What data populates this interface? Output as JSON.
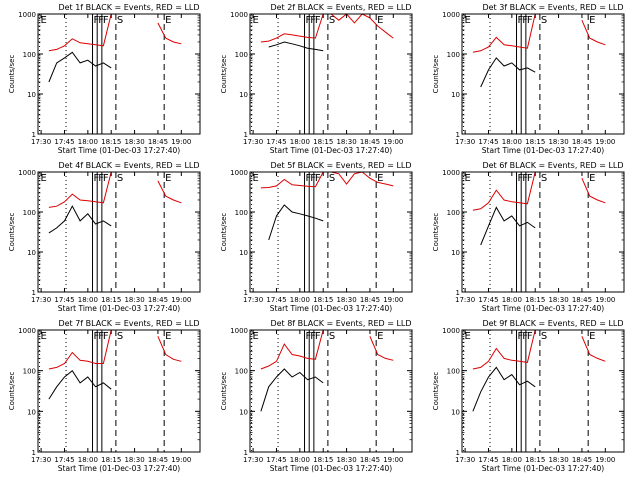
{
  "colors": {
    "events": "#000000",
    "lld": "#dd0000",
    "axes": "#000000"
  },
  "axis_common": {
    "ylabel": "Counts/sec",
    "xlabel": "Start Time (01-Dec-03 17:27:40)",
    "xticks": [
      "17:30",
      "17:45",
      "18:00",
      "18:15",
      "18:30",
      "18:45",
      "19:00"
    ],
    "yticks": [
      "1",
      "10",
      "100",
      "1000"
    ],
    "yscale": "log",
    "ylim": [
      1,
      1000
    ]
  },
  "chart_data": [
    {
      "type": "line",
      "title": "Det 1f BLACK = Events, RED = LLD",
      "markers": [
        "E",
        "F",
        "F",
        "F",
        "S",
        "E"
      ],
      "x": [
        "17:35",
        "17:40",
        "17:45",
        "17:50",
        "17:55",
        "18:00",
        "18:05",
        "18:10",
        "18:15",
        "18:20",
        "18:25",
        "18:30",
        "18:35",
        "18:40",
        "18:45",
        "18:50",
        "18:55",
        "19:00"
      ],
      "series": [
        {
          "name": "Events",
          "values": [
            20,
            60,
            80,
            110,
            60,
            70,
            50,
            60,
            45,
            null,
            null,
            null,
            null,
            null,
            20,
            null,
            null,
            null
          ]
        },
        {
          "name": "LLD",
          "values": [
            120,
            130,
            160,
            240,
            190,
            180,
            170,
            160,
            1000,
            null,
            null,
            null,
            null,
            null,
            600,
            250,
            200,
            180
          ]
        }
      ]
    },
    {
      "type": "line",
      "title": "Det 2f BLACK = Events, RED = LLD",
      "markers": [
        "E",
        "F",
        "F",
        "F",
        "S",
        "E"
      ],
      "x": [
        "17:35",
        "17:40",
        "17:45",
        "17:50",
        "17:55",
        "18:00",
        "18:05",
        "18:10",
        "18:15",
        "18:20",
        "18:25",
        "18:30",
        "18:35",
        "18:40",
        "18:45",
        "18:50",
        "18:55",
        "19:00"
      ],
      "series": [
        {
          "name": "Events",
          "values": [
            null,
            150,
            170,
            200,
            180,
            160,
            140,
            130,
            120,
            null,
            null,
            null,
            null,
            null,
            150,
            null,
            null,
            null
          ]
        },
        {
          "name": "LLD",
          "values": [
            200,
            210,
            250,
            320,
            300,
            280,
            260,
            250,
            1000,
            1000,
            700,
            1000,
            600,
            1000,
            800,
            500,
            350,
            250
          ]
        }
      ]
    },
    {
      "type": "line",
      "title": "Det 3f BLACK = Events, RED = LLD",
      "markers": [
        "E",
        "F",
        "F",
        "F",
        "S",
        "E"
      ],
      "x": [
        "17:35",
        "17:40",
        "17:45",
        "17:50",
        "17:55",
        "18:00",
        "18:05",
        "18:10",
        "18:15",
        "18:20",
        "18:25",
        "18:30",
        "18:35",
        "18:40",
        "18:45",
        "18:50",
        "18:55",
        "19:00"
      ],
      "series": [
        {
          "name": "Events",
          "values": [
            null,
            15,
            40,
            80,
            50,
            60,
            40,
            45,
            35,
            null,
            null,
            null,
            null,
            null,
            15,
            null,
            null,
            null
          ]
        },
        {
          "name": "LLD",
          "values": [
            110,
            120,
            150,
            260,
            170,
            160,
            150,
            140,
            1000,
            null,
            null,
            null,
            null,
            null,
            700,
            250,
            200,
            170
          ]
        }
      ]
    },
    {
      "type": "line",
      "title": "Det 4f BLACK = Events, RED = LLD",
      "markers": [
        "E",
        "F",
        "F",
        "F",
        "S",
        "E"
      ],
      "x": [
        "17:35",
        "17:40",
        "17:45",
        "17:50",
        "17:55",
        "18:00",
        "18:05",
        "18:10",
        "18:15",
        "18:20",
        "18:25",
        "18:30",
        "18:35",
        "18:40",
        "18:45",
        "18:50",
        "18:55",
        "19:00"
      ],
      "series": [
        {
          "name": "Events",
          "values": [
            30,
            40,
            60,
            140,
            60,
            90,
            50,
            60,
            45,
            null,
            null,
            null,
            null,
            null,
            20,
            null,
            null,
            null
          ]
        },
        {
          "name": "LLD",
          "values": [
            130,
            140,
            180,
            280,
            200,
            190,
            180,
            170,
            1000,
            null,
            null,
            null,
            null,
            null,
            600,
            250,
            200,
            170
          ]
        }
      ]
    },
    {
      "type": "line",
      "title": "Det 5f BLACK = Events, RED = LLD",
      "markers": [
        "E",
        "F",
        "F",
        "F",
        "S",
        "E"
      ],
      "x": [
        "17:35",
        "17:40",
        "17:45",
        "17:50",
        "17:55",
        "18:00",
        "18:05",
        "18:10",
        "18:15",
        "18:20",
        "18:25",
        "18:30",
        "18:35",
        "18:40",
        "18:45",
        "18:50",
        "18:55",
        "19:00"
      ],
      "series": [
        {
          "name": "Events",
          "values": [
            null,
            20,
            80,
            150,
            100,
            90,
            80,
            70,
            60,
            null,
            null,
            null,
            null,
            null,
            60,
            null,
            null,
            null
          ]
        },
        {
          "name": "LLD",
          "values": [
            400,
            410,
            450,
            650,
            480,
            460,
            440,
            430,
            1000,
            1000,
            900,
            500,
            900,
            1000,
            700,
            550,
            500,
            450
          ]
        }
      ]
    },
    {
      "type": "line",
      "title": "Det 6f BLACK = Events, RED = LLD",
      "markers": [
        "E",
        "F",
        "F",
        "F",
        "S",
        "E"
      ],
      "x": [
        "17:35",
        "17:40",
        "17:45",
        "17:50",
        "17:55",
        "18:00",
        "18:05",
        "18:10",
        "18:15",
        "18:20",
        "18:25",
        "18:30",
        "18:35",
        "18:40",
        "18:45",
        "18:50",
        "18:55",
        "19:00"
      ],
      "series": [
        {
          "name": "Events",
          "values": [
            null,
            15,
            45,
            130,
            60,
            80,
            45,
            55,
            40,
            null,
            null,
            null,
            null,
            null,
            15,
            null,
            null,
            null
          ]
        },
        {
          "name": "LLD",
          "values": [
            110,
            120,
            170,
            350,
            200,
            180,
            170,
            160,
            1000,
            null,
            null,
            null,
            null,
            null,
            700,
            250,
            200,
            170
          ]
        }
      ]
    },
    {
      "type": "line",
      "title": "Det 7f BLACK = Events, RED = LLD",
      "markers": [
        "E",
        "F",
        "F",
        "F",
        "S",
        "E"
      ],
      "x": [
        "17:35",
        "17:40",
        "17:45",
        "17:50",
        "17:55",
        "18:00",
        "18:05",
        "18:10",
        "18:15",
        "18:20",
        "18:25",
        "18:30",
        "18:35",
        "18:40",
        "18:45",
        "18:50",
        "18:55",
        "19:00"
      ],
      "series": [
        {
          "name": "Events",
          "values": [
            20,
            40,
            70,
            100,
            50,
            70,
            40,
            50,
            35,
            null,
            null,
            null,
            null,
            null,
            15,
            null,
            null,
            null
          ]
        },
        {
          "name": "LLD",
          "values": [
            110,
            120,
            150,
            280,
            180,
            170,
            150,
            150,
            1000,
            null,
            null,
            null,
            null,
            null,
            700,
            250,
            190,
            170
          ]
        }
      ]
    },
    {
      "type": "line",
      "title": "Det 8f BLACK = Events, RED = LLD",
      "markers": [
        "E",
        "F",
        "F",
        "F",
        "S",
        "E"
      ],
      "x": [
        "17:35",
        "17:40",
        "17:45",
        "17:50",
        "17:55",
        "18:00",
        "18:05",
        "18:10",
        "18:15",
        "18:20",
        "18:25",
        "18:30",
        "18:35",
        "18:40",
        "18:45",
        "18:50",
        "18:55",
        "19:00"
      ],
      "series": [
        {
          "name": "Events",
          "values": [
            10,
            40,
            70,
            110,
            70,
            90,
            60,
            70,
            50,
            null,
            null,
            null,
            null,
            null,
            20,
            null,
            null,
            null
          ]
        },
        {
          "name": "LLD",
          "values": [
            110,
            130,
            170,
            450,
            250,
            230,
            200,
            190,
            1000,
            null,
            null,
            null,
            null,
            null,
            700,
            250,
            200,
            180
          ]
        }
      ]
    },
    {
      "type": "line",
      "title": "Det 9f BLACK = Events, RED = LLD",
      "markers": [
        "E",
        "F",
        "F",
        "F",
        "S",
        "E"
      ],
      "x": [
        "17:35",
        "17:40",
        "17:45",
        "17:50",
        "17:55",
        "18:00",
        "18:05",
        "18:10",
        "18:15",
        "18:20",
        "18:25",
        "18:30",
        "18:35",
        "18:40",
        "18:45",
        "18:50",
        "18:55",
        "19:00"
      ],
      "series": [
        {
          "name": "Events",
          "values": [
            10,
            30,
            70,
            120,
            60,
            80,
            45,
            55,
            40,
            null,
            null,
            null,
            null,
            null,
            15,
            null,
            null,
            null
          ]
        },
        {
          "name": "LLD",
          "values": [
            110,
            120,
            170,
            350,
            200,
            180,
            170,
            160,
            1000,
            null,
            null,
            null,
            null,
            null,
            700,
            250,
            200,
            170
          ]
        }
      ]
    }
  ]
}
